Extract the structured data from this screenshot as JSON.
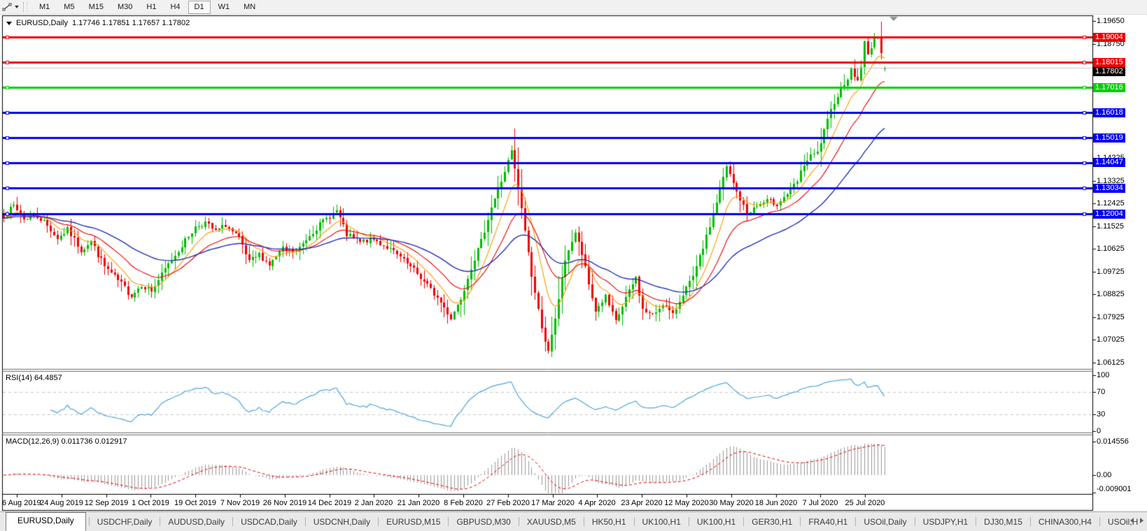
{
  "toolbar": {
    "tool_icon": "line-studies-icon",
    "dropdown_icon": "chevron-down-icon",
    "timeframes": [
      "M1",
      "M5",
      "M15",
      "M30",
      "H1",
      "H4",
      "D1",
      "W1",
      "MN"
    ],
    "active_timeframe": "D1"
  },
  "chart": {
    "header": {
      "collapse_icon": "triangle-down-icon",
      "symbol": "EURUSD,Daily",
      "ohlc": "1.17746 1.17851 1.17657 1.17802"
    },
    "price_axis_ticks": [
      "1.19650",
      "1.18750",
      "1.14225",
      "1.13325",
      "1.12425",
      "1.11525",
      "1.10625",
      "1.09725",
      "1.08825",
      "1.07925",
      "1.07025",
      "1.06125"
    ],
    "hlines": [
      {
        "value": "1.19004",
        "price": 1.19004,
        "color": "#ee0000"
      },
      {
        "value": "1.18015",
        "price": 1.18015,
        "color": "#ee0000"
      },
      {
        "value": "1.17016",
        "price": 1.17016,
        "color": "#00d000"
      },
      {
        "value": "1.16018",
        "price": 1.16018,
        "color": "#0000ee"
      },
      {
        "value": "1.15019",
        "price": 1.15019,
        "color": "#0000ee"
      },
      {
        "value": "1.14047",
        "price": 1.14047,
        "color": "#0000ee"
      },
      {
        "value": "1.13034",
        "price": 1.13034,
        "color": "#0000ee"
      },
      {
        "value": "1.12004",
        "price": 1.12004,
        "color": "#0000ee"
      }
    ],
    "current_price": {
      "value": "1.17802",
      "price": 1.17802,
      "line_color": "#c8c8c8",
      "label_bg": "#000000"
    },
    "shift_marker_icon": "triangle-down-icon",
    "date_axis": [
      "6 Aug 2019",
      "24 Aug 2019",
      "12 Sep 2019",
      "1 Oct 2019",
      "19 Oct 2019",
      "7 Nov 2019",
      "26 Nov 2019",
      "14 Dec 2019",
      "2 Jan 2020",
      "21 Jan 2020",
      "8 Feb 2020",
      "27 Feb 2020",
      "17 Mar 2020",
      "4 Apr 2020",
      "23 Apr 2020",
      "12 May 2020",
      "30 May 2020",
      "18 Jun 2020",
      "7 Jul 2020",
      "25 Jul 2020"
    ]
  },
  "rsi_panel": {
    "label": "RSI(14) 64.4857",
    "levels": [
      "100",
      "70",
      "30",
      "0"
    ],
    "level_values": [
      100,
      70,
      30,
      0
    ],
    "dashed_levels": [
      70,
      30
    ],
    "line_color": "#4da6e0"
  },
  "macd_panel": {
    "label": "MACD(12,26,9) 0.011736 0.012917",
    "levels": [
      "0.014556",
      "0.00",
      "-0.009001"
    ],
    "level_values": [
      0.014556,
      0,
      -0.009001
    ],
    "histogram_color": "#9a9a9a",
    "signal_color": "#ee0000"
  },
  "tabs": {
    "items": [
      "EURUSD,Daily",
      "USDCHF,Daily",
      "AUDUSD,Daily",
      "USDCAD,Daily",
      "USDCNH,Daily",
      "EURUSD,M15",
      "GBPUSD,M30",
      "XAUUSD,M5",
      "HK50,H1",
      "UK100,H1",
      "UK100,H1",
      "GER30,H1",
      "FRA40,H1",
      "USOil,Daily",
      "USDJPY,H1",
      "DJ30,M15",
      "CHINA300,H4",
      "USOil,H"
    ],
    "active_index": 0,
    "scroll_left_icon": "arrow-left-icon",
    "scroll_right_icon": "arrow-right-icon"
  },
  "chart_data": {
    "type": "candlestick",
    "symbol": "EURUSD",
    "timeframe": "Daily",
    "title": "EURUSD,Daily",
    "current_bar": {
      "open": 1.17746,
      "high": 1.17851,
      "low": 1.17657,
      "close": 1.17802
    },
    "y_axis": {
      "top": 1.1965,
      "bottom": 1.06125,
      "tick_step": 0.009
    },
    "x_axis_labels": [
      "6 Aug 2019",
      "24 Aug 2019",
      "12 Sep 2019",
      "1 Oct 2019",
      "19 Oct 2019",
      "7 Nov 2019",
      "26 Nov 2019",
      "14 Dec 2019",
      "2 Jan 2020",
      "21 Jan 2020",
      "8 Feb 2020",
      "27 Feb 2020",
      "17 Mar 2020",
      "4 Apr 2020",
      "23 Apr 2020",
      "12 May 2020",
      "30 May 2020",
      "18 Jun 2020",
      "7 Jul 2020",
      "25 Jul 2020"
    ],
    "candles_total": 263,
    "close_path_anchors": [
      [
        0,
        1.1195
      ],
      [
        3,
        1.1232
      ],
      [
        6,
        1.118
      ],
      [
        9,
        1.12
      ],
      [
        12,
        1.117
      ],
      [
        16,
        1.1105
      ],
      [
        19,
        1.1138
      ],
      [
        23,
        1.1058
      ],
      [
        26,
        1.1092
      ],
      [
        30,
        1.0992
      ],
      [
        34,
        1.0938
      ],
      [
        38,
        1.0878
      ],
      [
        41,
        1.0922
      ],
      [
        44,
        1.0895
      ],
      [
        48,
        1.0982
      ],
      [
        53,
        1.1078
      ],
      [
        57,
        1.1148
      ],
      [
        60,
        1.1168
      ],
      [
        63,
        1.113
      ],
      [
        66,
        1.1158
      ],
      [
        70,
        1.1102
      ],
      [
        73,
        1.1008
      ],
      [
        76,
        1.104
      ],
      [
        79,
        1.1
      ],
      [
        83,
        1.1062
      ],
      [
        87,
        1.1048
      ],
      [
        91,
        1.1118
      ],
      [
        95,
        1.1172
      ],
      [
        99,
        1.1212
      ],
      [
        102,
        1.1118
      ],
      [
        106,
        1.1088
      ],
      [
        110,
        1.11
      ],
      [
        114,
        1.1068
      ],
      [
        118,
        1.1028
      ],
      [
        122,
        1.0978
      ],
      [
        126,
        1.0918
      ],
      [
        130,
        1.0852
      ],
      [
        133,
        1.0788
      ],
      [
        136,
        1.0868
      ],
      [
        139,
        1.0992
      ],
      [
        142,
        1.1092
      ],
      [
        145,
        1.1228
      ],
      [
        148,
        1.1332
      ],
      [
        151,
        1.1448
      ],
      [
        153,
        1.1298
      ],
      [
        155,
        1.1138
      ],
      [
        157,
        1.0958
      ],
      [
        159,
        1.0818
      ],
      [
        161,
        1.07
      ],
      [
        162,
        1.0652
      ],
      [
        164,
        1.0782
      ],
      [
        166,
        1.0952
      ],
      [
        168,
        1.1062
      ],
      [
        170,
        1.1128
      ],
      [
        172,
        1.1042
      ],
      [
        174,
        1.0922
      ],
      [
        176,
        1.0818
      ],
      [
        179,
        1.0872
      ],
      [
        182,
        1.0772
      ],
      [
        185,
        1.0868
      ],
      [
        188,
        1.0948
      ],
      [
        190,
        1.0822
      ],
      [
        193,
        1.0798
      ],
      [
        196,
        1.0848
      ],
      [
        199,
        1.0798
      ],
      [
        202,
        1.0888
      ],
      [
        205,
        1.0948
      ],
      [
        209,
        1.1108
      ],
      [
        212,
        1.1248
      ],
      [
        215,
        1.1388
      ],
      [
        218,
        1.1288
      ],
      [
        221,
        1.1205
      ],
      [
        224,
        1.1232
      ],
      [
        227,
        1.1252
      ],
      [
        230,
        1.1242
      ],
      [
        233,
        1.1282
      ],
      [
        236,
        1.1328
      ],
      [
        238,
        1.1398
      ],
      [
        240,
        1.1428
      ],
      [
        242,
        1.1442
      ],
      [
        244,
        1.1528
      ],
      [
        247,
        1.1648
      ],
      [
        250,
        1.1718
      ],
      [
        252,
        1.1768
      ],
      [
        254,
        1.1728
      ],
      [
        255,
        1.1788
      ],
      [
        256,
        1.1878
      ],
      [
        257,
        1.1828
      ],
      [
        258,
        1.1868
      ],
      [
        259,
        1.1902
      ],
      [
        260,
        1.1888
      ],
      [
        261,
        1.1848
      ],
      [
        262,
        1.17802
      ]
    ],
    "up_color": "#00bd00",
    "down_color": "#ee0000",
    "moving_averages": [
      {
        "name": "fast",
        "color": "#ff9900",
        "period": 9
      },
      {
        "name": "medium",
        "color": "#ee0000",
        "period": 20
      },
      {
        "name": "slow",
        "color": "#2233bb",
        "period": 45
      }
    ],
    "indicators": [
      {
        "name": "RSI",
        "period": 14,
        "current": 64.4857,
        "levels": [
          30,
          70
        ],
        "range": [
          0,
          100
        ],
        "color": "#4da6e0"
      },
      {
        "name": "MACD",
        "fast": 12,
        "slow": 26,
        "signal": 9,
        "current_main": 0.011736,
        "current_signal": 0.012917,
        "axis_max": 0.014556,
        "axis_min": -0.009001
      }
    ],
    "horizontal_lines": [
      1.19004,
      1.18015,
      1.17016,
      1.16018,
      1.15019,
      1.14047,
      1.13034,
      1.12004
    ],
    "grid": false,
    "legend_position": "none"
  }
}
